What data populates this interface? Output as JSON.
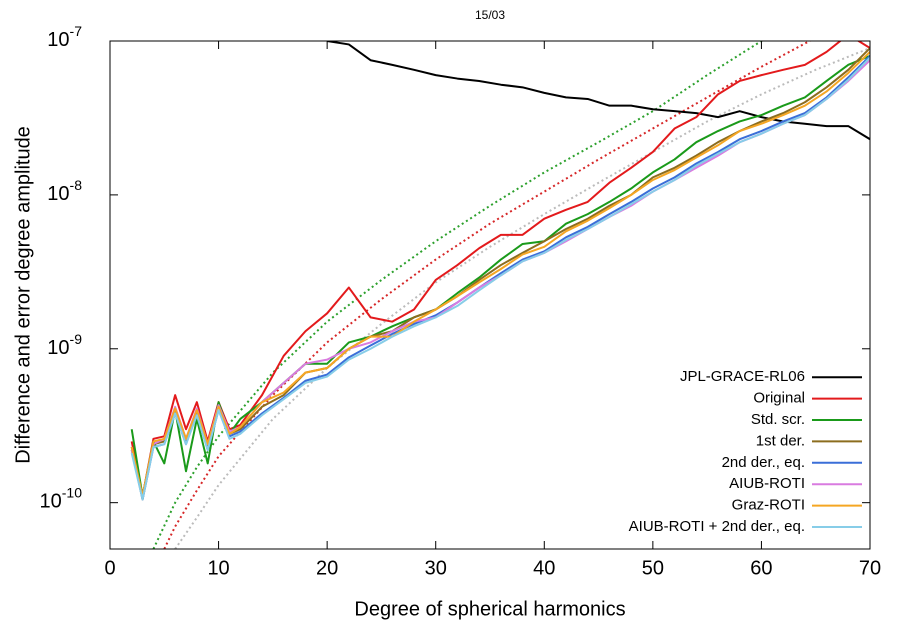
{
  "chart_data": {
    "type": "line",
    "title": "15/03",
    "x_label": "Degree of spherical harmonics",
    "y_label": "Difference and error degree amplitude",
    "y_scale": "log",
    "xlim": [
      0,
      70
    ],
    "ylim": [
      5e-11,
      1e-07
    ],
    "xticks": [
      0,
      10,
      20,
      30,
      40,
      50,
      60,
      70
    ],
    "yticks": [
      {
        "value": 1e-10,
        "label": "10",
        "exponent": "-10"
      },
      {
        "value": 1e-09,
        "label": "10",
        "exponent": "-9"
      },
      {
        "value": 1e-08,
        "label": "10",
        "exponent": "-8"
      },
      {
        "value": 1e-07,
        "label": "10",
        "exponent": "-7"
      }
    ],
    "legend": "lower right",
    "x": [
      2,
      3,
      4,
      5,
      6,
      7,
      8,
      9,
      10,
      11,
      12,
      14,
      16,
      18,
      20,
      22,
      24,
      26,
      28,
      30,
      32,
      34,
      36,
      38,
      40,
      42,
      44,
      46,
      48,
      50,
      52,
      54,
      56,
      58,
      60,
      62,
      64,
      66,
      68,
      70
    ],
    "series": [
      {
        "name": "JPL-GRACE-RL06",
        "color": "#000000",
        "values": [
          null,
          null,
          null,
          null,
          null,
          null,
          null,
          null,
          null,
          null,
          null,
          null,
          null,
          null,
          1e-07,
          9.5e-08,
          7.5e-08,
          7e-08,
          6.5e-08,
          6e-08,
          5.7e-08,
          5.5e-08,
          5.2e-08,
          5e-08,
          4.6e-08,
          4.3e-08,
          4.2e-08,
          3.8e-08,
          3.8e-08,
          3.6e-08,
          3.5e-08,
          3.4e-08,
          3.2e-08,
          3.5e-08,
          3.2e-08,
          3e-08,
          2.9e-08,
          2.8e-08,
          2.8e-08,
          2.3e-08
        ]
      },
      {
        "name": "Original",
        "color": "#e31a1c",
        "values": [
          2.5e-10,
          1.1e-10,
          2.6e-10,
          2.7e-10,
          5e-10,
          3e-10,
          4.5e-10,
          2.5e-10,
          4.5e-10,
          3e-10,
          3.2e-10,
          5e-10,
          9e-10,
          1.3e-09,
          1.7e-09,
          2.5e-09,
          1.6e-09,
          1.5e-09,
          1.8e-09,
          2.8e-09,
          3.5e-09,
          4.5e-09,
          5.5e-09,
          5.5e-09,
          7e-09,
          8e-09,
          9e-09,
          1.2e-08,
          1.5e-08,
          1.9e-08,
          2.7e-08,
          3.2e-08,
          4.5e-08,
          5.5e-08,
          6e-08,
          6.5e-08,
          7e-08,
          8.5e-08,
          1.1e-07,
          9e-08
        ]
      },
      {
        "name": "Std. scr.",
        "color": "#1a9a1a",
        "values": [
          3e-10,
          1.1e-10,
          2.5e-10,
          1.8e-10,
          4e-10,
          1.6e-10,
          3.5e-10,
          1.8e-10,
          4.5e-10,
          2.8e-10,
          3.5e-10,
          4.5e-10,
          6e-10,
          8e-10,
          8e-10,
          1.1e-09,
          1.2e-09,
          1.4e-09,
          1.6e-09,
          1.8e-09,
          2.3e-09,
          2.9e-09,
          3.8e-09,
          4.8e-09,
          5e-09,
          6.5e-09,
          7.5e-09,
          9e-09,
          1.1e-08,
          1.4e-08,
          1.7e-08,
          2.2e-08,
          2.6e-08,
          3e-08,
          3.3e-08,
          3.8e-08,
          4.3e-08,
          5.5e-08,
          7e-08,
          8e-08
        ]
      },
      {
        "name": "1st der.",
        "color": "#8c6d1f",
        "values": [
          2.3e-10,
          1.05e-10,
          2.4e-10,
          2.5e-10,
          4e-10,
          2.5e-10,
          4e-10,
          2.3e-10,
          4.2e-10,
          2.8e-10,
          3e-10,
          4.2e-10,
          5e-10,
          7e-10,
          7.5e-10,
          1e-09,
          1.2e-09,
          1.3e-09,
          1.6e-09,
          1.8e-09,
          2.2e-09,
          2.8e-09,
          3.5e-09,
          4.2e-09,
          5e-09,
          6e-09,
          7e-09,
          8.5e-09,
          1e-08,
          1.3e-08,
          1.5e-08,
          1.8e-08,
          2.2e-08,
          2.6e-08,
          3e-08,
          3.4e-08,
          4e-08,
          5e-08,
          6.5e-08,
          9e-08
        ]
      },
      {
        "name": "2nd der., eq.",
        "color": "#3a6fd8",
        "values": [
          2.2e-10,
          1.05e-10,
          2.3e-10,
          2.4e-10,
          3.8e-10,
          2.4e-10,
          3.8e-10,
          2.2e-10,
          4e-10,
          2.7e-10,
          2.9e-10,
          3.8e-10,
          4.8e-10,
          6.2e-10,
          6.8e-10,
          8.8e-10,
          1.05e-09,
          1.25e-09,
          1.45e-09,
          1.65e-09,
          2e-09,
          2.5e-09,
          3.1e-09,
          3.8e-09,
          4.3e-09,
          5.3e-09,
          6.2e-09,
          7.5e-09,
          9e-09,
          1.1e-08,
          1.3e-08,
          1.6e-08,
          1.9e-08,
          2.3e-08,
          2.6e-08,
          3e-08,
          3.4e-08,
          4.3e-08,
          5.8e-08,
          8e-08
        ]
      },
      {
        "name": "AIUB-ROTI",
        "color": "#d97be0",
        "values": [
          2.2e-10,
          1.1e-10,
          2.4e-10,
          2.6e-10,
          4.2e-10,
          2.6e-10,
          4.1e-10,
          2.4e-10,
          4.3e-10,
          2.9e-10,
          3.1e-10,
          4.5e-10,
          6e-10,
          8e-10,
          8.5e-10,
          1e-09,
          1.1e-09,
          1.3e-09,
          1.5e-09,
          1.6e-09,
          2e-09,
          2.5e-09,
          3e-09,
          3.7e-09,
          4.2e-09,
          5e-09,
          6e-09,
          7.2e-09,
          8.5e-09,
          1.05e-08,
          1.25e-08,
          1.5e-08,
          1.8e-08,
          2.2e-08,
          2.5e-08,
          2.9e-08,
          3.3e-08,
          4.2e-08,
          5.5e-08,
          7.5e-08
        ]
      },
      {
        "name": "Graz-ROTI",
        "color": "#f5a623",
        "values": [
          2.3e-10,
          1.1e-10,
          2.5e-10,
          2.6e-10,
          4.1e-10,
          2.6e-10,
          4e-10,
          2.4e-10,
          4.2e-10,
          2.8e-10,
          3.1e-10,
          4.5e-10,
          5.2e-10,
          7e-10,
          7.5e-10,
          1e-09,
          1.2e-09,
          1.2e-09,
          1.5e-09,
          1.8e-09,
          2.2e-09,
          2.7e-09,
          3.3e-09,
          4.1e-09,
          4.6e-09,
          5.8e-09,
          6.8e-09,
          8.2e-09,
          1e-08,
          1.25e-08,
          1.45e-08,
          1.75e-08,
          2.1e-08,
          2.6e-08,
          2.9e-08,
          3.3e-08,
          3.8e-08,
          4.7e-08,
          6.2e-08,
          8.5e-08
        ]
      },
      {
        "name": "AIUB-ROTI + 2nd der., eq.",
        "color": "#87cde8",
        "values": [
          2.1e-10,
          1.05e-10,
          2.3e-10,
          2.4e-10,
          3.8e-10,
          2.4e-10,
          3.7e-10,
          2.2e-10,
          4e-10,
          2.6e-10,
          2.8e-10,
          3.7e-10,
          4.7e-10,
          6e-10,
          6.6e-10,
          8.5e-10,
          1e-09,
          1.2e-09,
          1.4e-09,
          1.6e-09,
          1.9e-09,
          2.4e-09,
          3e-09,
          3.7e-09,
          4.2e-09,
          5.1e-09,
          6e-09,
          7.2e-09,
          8.7e-09,
          1.05e-08,
          1.25e-08,
          1.55e-08,
          1.85e-08,
          2.2e-08,
          2.5e-08,
          2.9e-08,
          3.3e-08,
          4.2e-08,
          5.6e-08,
          7.8e-08
        ]
      }
    ],
    "error_series": [
      {
        "color": "#2ca02c",
        "x": [
          4,
          6,
          8,
          10,
          15,
          20,
          25,
          30,
          35,
          40,
          45,
          50,
          55,
          60,
          65
        ],
        "values": [
          5e-11,
          1e-10,
          1.7e-10,
          2.7e-10,
          7e-10,
          1.5e-09,
          2.8e-09,
          5e-09,
          8.5e-09,
          1.4e-08,
          2.2e-08,
          3.5e-08,
          6e-08,
          1e-07,
          1.5e-07
        ]
      },
      {
        "color": "#d62728",
        "x": [
          5,
          6,
          8,
          10,
          15,
          20,
          25,
          30,
          35,
          40,
          45,
          50,
          55,
          60,
          65
        ],
        "values": [
          5e-11,
          7e-11,
          1.2e-10,
          2e-10,
          5e-10,
          1.1e-09,
          2.1e-09,
          3.8e-09,
          6.5e-09,
          1.05e-08,
          1.7e-08,
          2.7e-08,
          4.3e-08,
          6.8e-08,
          1.05e-07
        ]
      },
      {
        "color": "#bbbbbb",
        "x": [
          6,
          8,
          10,
          15,
          20,
          25,
          30,
          35,
          40,
          45,
          50,
          55,
          60,
          65,
          70
        ],
        "values": [
          5e-11,
          8e-11,
          1.3e-10,
          3.5e-10,
          7.5e-10,
          1.45e-09,
          2.7e-09,
          4.6e-09,
          7.5e-09,
          1.2e-08,
          1.9e-08,
          3e-08,
          4.5e-08,
          6.5e-08,
          9e-08
        ]
      }
    ]
  }
}
